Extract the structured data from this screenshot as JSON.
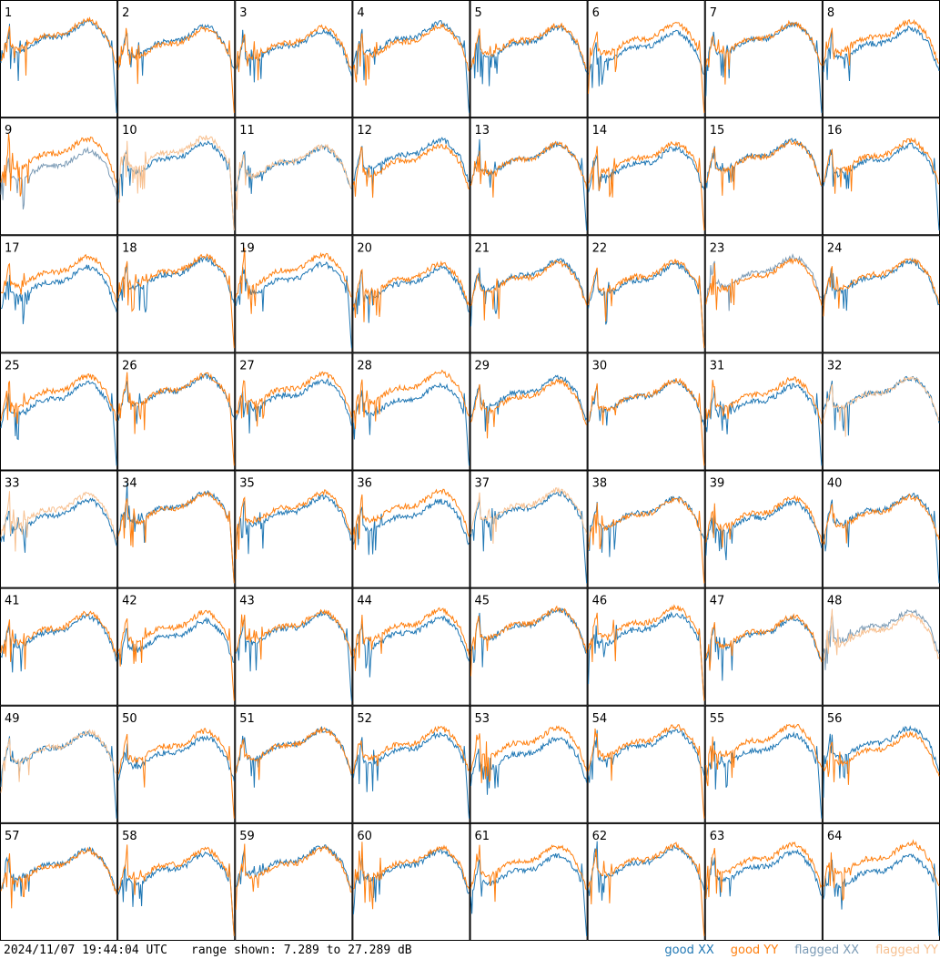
{
  "chart_data": {
    "type": "line",
    "layout": "8x8 small multiples",
    "panels": [
      "1",
      "2",
      "3",
      "4",
      "5",
      "6",
      "7",
      "8",
      "9",
      "10",
      "11",
      "12",
      "13",
      "14",
      "15",
      "16",
      "17",
      "18",
      "19",
      "20",
      "21",
      "22",
      "23",
      "24",
      "25",
      "26",
      "27",
      "28",
      "29",
      "30",
      "31",
      "32",
      "33",
      "34",
      "35",
      "36",
      "37",
      "38",
      "39",
      "40",
      "41",
      "42",
      "43",
      "44",
      "45",
      "46",
      "47",
      "48",
      "49",
      "50",
      "51",
      "52",
      "53",
      "54",
      "55",
      "56",
      "57",
      "58",
      "59",
      "60",
      "61",
      "62",
      "63",
      "64"
    ],
    "series": [
      {
        "name": "good XX",
        "color": "#1f77b4"
      },
      {
        "name": "good YY",
        "color": "#ff7f0e"
      },
      {
        "name": "flagged XX",
        "color": "#7a9ab5"
      },
      {
        "name": "flagged YY",
        "color": "#f7c090"
      }
    ],
    "flagged_xx_panels": [
      "9",
      "23"
    ],
    "flagged_yy_panels": [
      "10",
      "11",
      "32",
      "33",
      "37",
      "49"
    ],
    "flagged_both_panels": [
      "48"
    ],
    "yrange_db": [
      7.289,
      27.289
    ]
  },
  "footer": {
    "timestamp": "2024/11/07 19:44:04 UTC",
    "range_text": "range shown: 7.289 to 27.289 dB"
  }
}
